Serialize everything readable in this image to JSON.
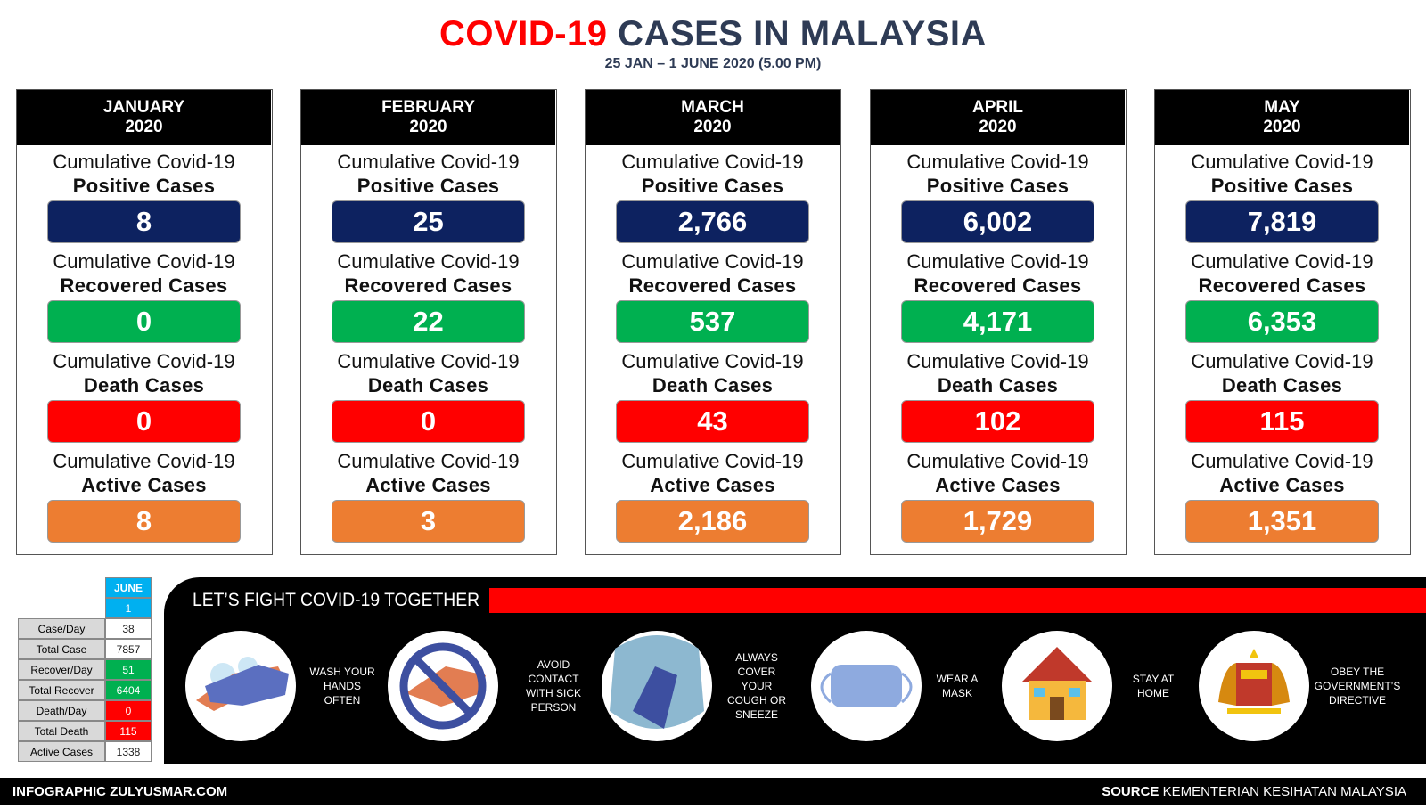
{
  "title": {
    "red": "COVID-19",
    "rest": "CASES IN MALAYSIA"
  },
  "subtitle": "25 JAN – 1 JUNE 2020 (5.00 PM)",
  "cards": [
    {
      "month": "JANUARY",
      "year": "2020",
      "stats": [
        {
          "line1": "Cumulative Covid-19",
          "line2": "Positive Cases",
          "value": "8"
        },
        {
          "line1": "Cumulative Covid-19",
          "line2": "Recovered Cases",
          "value": "0"
        },
        {
          "line1": "Cumulative Covid-19",
          "line2": "Death Cases",
          "value": "0"
        },
        {
          "line1": "Cumulative Covid-19",
          "line2": "Active Cases",
          "value": "8"
        }
      ]
    },
    {
      "month": "FEBRUARY",
      "year": "2020",
      "stats": [
        {
          "line1": "Cumulative Covid-19",
          "line2": "Positive Cases",
          "value": "25"
        },
        {
          "line1": "Cumulative Covid-19",
          "line2": "Recovered Cases",
          "value": "22"
        },
        {
          "line1": "Cumulative Covid-19",
          "line2": "Death Cases",
          "value": "0"
        },
        {
          "line1": "Cumulative Covid-19",
          "line2": "Active Cases",
          "value": "3"
        }
      ]
    },
    {
      "month": "MARCH",
      "year": "2020",
      "stats": [
        {
          "line1": "Cumulative Covid-19",
          "line2": "Positive Cases",
          "value": "2,766"
        },
        {
          "line1": "Cumulative Covid-19",
          "line2": "Recovered Cases",
          "value": "537"
        },
        {
          "line1": "Cumulative Covid-19",
          "line2": "Death Cases",
          "value": "43"
        },
        {
          "line1": "Cumulative Covid-19",
          "line2": "Active Cases",
          "value": "2,186"
        }
      ]
    },
    {
      "month": "APRIL",
      "year": "2020",
      "stats": [
        {
          "line1": "Cumulative Covid-19",
          "line2": "Positive Cases",
          "value": "6,002"
        },
        {
          "line1": "Cumulative Covid-19",
          "line2": "Recovered Cases",
          "value": "4,171"
        },
        {
          "line1": "Cumulative Covid-19",
          "line2": "Death Cases",
          "value": "102"
        },
        {
          "line1": "Cumulative Covid-19",
          "line2": "Active Cases",
          "value": "1,729"
        }
      ]
    },
    {
      "month": "MAY",
      "year": "2020",
      "stats": [
        {
          "line1": "Cumulative Covid-19",
          "line2": "Positive Cases",
          "value": "7,819"
        },
        {
          "line1": "Cumulative Covid-19",
          "line2": "Recovered Cases",
          "value": "6,353"
        },
        {
          "line1": "Cumulative Covid-19",
          "line2": "Death Cases",
          "value": "115"
        },
        {
          "line1": "Cumulative Covid-19",
          "line2": "Active Cases",
          "value": "1,351"
        }
      ]
    }
  ],
  "june_table": {
    "month": "JUNE",
    "day": "1",
    "rows": [
      [
        "Case/Day",
        "38"
      ],
      [
        "Total Case",
        "7857"
      ],
      [
        "Recover/Day",
        "51"
      ],
      [
        "Total Recover",
        "6404"
      ],
      [
        "Death/Day",
        "0"
      ],
      [
        "Total Death",
        "115"
      ],
      [
        "Active Cases",
        "1338"
      ]
    ]
  },
  "banner": "LET’S FIGHT COVID-19 TOGETHER",
  "tips": [
    [
      "WASH YOUR",
      "HANDS",
      "OFTEN"
    ],
    [
      "AVOID",
      "CONTACT",
      "WITH SICK",
      "PERSON"
    ],
    [
      "ALWAYS",
      "COVER",
      "YOUR",
      "COUGH OR",
      "SNEEZE"
    ],
    [
      "WEAR A",
      "MASK"
    ],
    [
      "STAY AT",
      "HOME"
    ],
    [
      "OBEY THE",
      "GOVERNMENT’S",
      "DIRECTIVE"
    ]
  ],
  "footer": {
    "left": "INFOGRAPHIC ZULYUSMAR.COM",
    "right_bold": "SOURCE",
    "right": "KEMENTERIAN KESIHATAN MALAYSIA"
  }
}
